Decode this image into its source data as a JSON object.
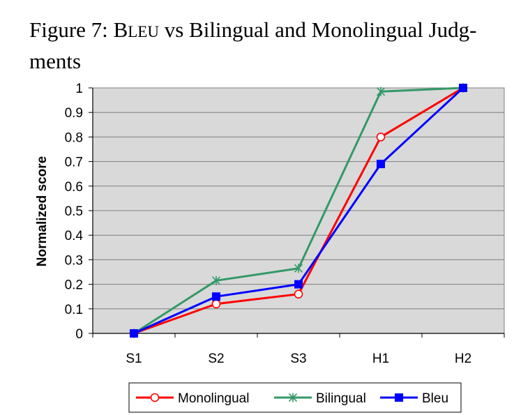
{
  "caption": {
    "prefix": "Figure 7: ",
    "bleu_initial": "B",
    "bleu_rest": "LEU",
    "suffix": " vs Bilingual and Monolingual Judg-",
    "line2": "ments"
  },
  "chart_data": {
    "type": "line",
    "title": "",
    "xlabel": "",
    "ylabel": "Normalized score",
    "categories": [
      "S1",
      "S2",
      "S3",
      "H1",
      "H2"
    ],
    "ylim": [
      0,
      1
    ],
    "yticks": [
      "0",
      "0.1",
      "0.2",
      "0.3",
      "0.4",
      "0.5",
      "0.6",
      "0.7",
      "0.8",
      "0.9",
      "1"
    ],
    "grid": true,
    "legend_position": "bottom",
    "series": [
      {
        "name": "Monolingual",
        "values": [
          0.0,
          0.12,
          0.16,
          0.8,
          1.0
        ],
        "color": "#ff0000",
        "marker": "circle"
      },
      {
        "name": "Bilingual",
        "values": [
          0.0,
          0.215,
          0.265,
          0.985,
          1.0
        ],
        "color": "#339966",
        "marker": "star"
      },
      {
        "name": "Bleu",
        "values": [
          0.0,
          0.15,
          0.2,
          0.69,
          1.0
        ],
        "color": "#0000ff",
        "marker": "square"
      }
    ]
  }
}
